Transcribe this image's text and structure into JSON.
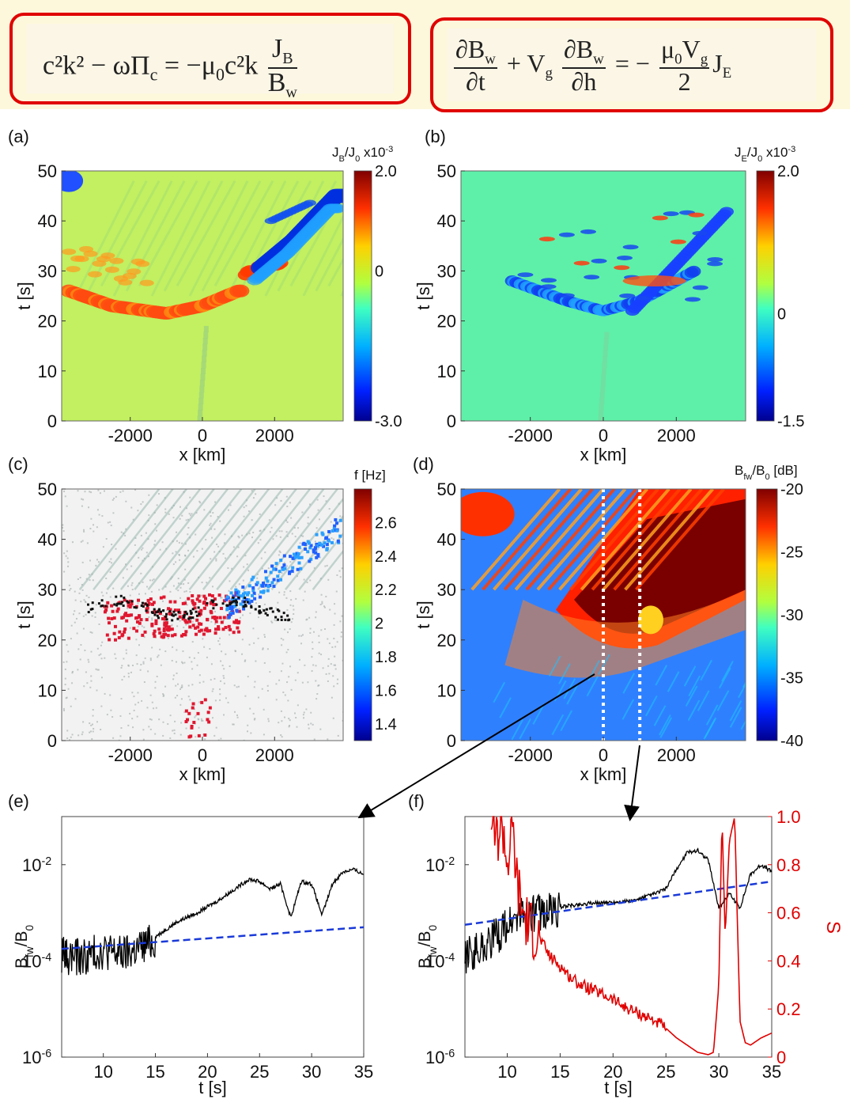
{
  "equations": {
    "left": {
      "lhs": "c²k² − ωΠ",
      "lhs_sub": "c",
      "rhs_pre": "= −μ",
      "rhs_sub": "0",
      "rhs_mid": "c²k",
      "num": "J",
      "num_sub": "B",
      "den": "B",
      "den_sub": "w"
    },
    "right": {
      "t1_num": "∂B",
      "t1_num_sub": "w",
      "t1_den": "∂t",
      "plus": "+ V",
      "plus_sub": "g",
      "t2_num": "∂B",
      "t2_num_sub": "w",
      "t2_den": "∂h",
      "eq": "= −",
      "t3_num": "μ",
      "t3_num_sub": "0",
      "t3_num_tail": "V",
      "t3_num_tail_sub": "g",
      "t3_den": "2",
      "tail": "J",
      "tail_sub": "E"
    }
  },
  "colors": {
    "box_border": "#e00000",
    "band": "#fdf8dc",
    "series_black": "#000000",
    "series_blue": "#1a3ad8",
    "series_red": "#e00000",
    "arrow": "#000000"
  },
  "chart_data": [
    {
      "id": "a",
      "panel_label": "(a)",
      "type": "heatmap",
      "xlabel": "x [km]",
      "ylabel": "t [s]",
      "xlim": [
        -3900,
        3900
      ],
      "ylim": [
        0,
        50
      ],
      "xticks": [
        -2000,
        0,
        2000
      ],
      "yticks": [
        0,
        10,
        20,
        30,
        40,
        50
      ],
      "colorbar": {
        "title": "J",
        "title_sub": "B",
        "title_mid": "/J",
        "title_mid_sub": "0",
        "title_scale": "x10",
        "title_exp": "-3",
        "ticks": [
          "2.0",
          "0",
          "-3.0"
        ],
        "range": [
          -3.0,
          2.0
        ]
      },
      "features": [
        {
          "kind": "positive arc",
          "x": [
            -3700,
            -2500,
            -1000,
            0,
            1000
          ],
          "t": [
            26,
            23,
            21.5,
            23,
            26
          ]
        },
        {
          "kind": "negative band",
          "x": [
            1500,
            2500,
            3700
          ],
          "t": [
            30,
            36,
            45
          ]
        }
      ]
    },
    {
      "id": "b",
      "panel_label": "(b)",
      "type": "heatmap",
      "xlabel": "x [km]",
      "ylabel": "t [s]",
      "xlim": [
        -3900,
        3900
      ],
      "ylim": [
        0,
        50
      ],
      "xticks": [
        -2000,
        0,
        2000
      ],
      "yticks": [
        0,
        10,
        20,
        30,
        40,
        50
      ],
      "colorbar": {
        "title": "J",
        "title_sub": "E",
        "title_mid": "/J",
        "title_mid_sub": "0",
        "title_scale": "x10",
        "title_exp": "-3",
        "ticks": [
          "2.0",
          "0",
          "-1.5"
        ],
        "range": [
          -1.5,
          2.0
        ]
      },
      "features": [
        {
          "kind": "negative arc",
          "x": [
            -2500,
            -1000,
            0,
            1000,
            2500
          ],
          "t": [
            28,
            24,
            22,
            24,
            30
          ]
        }
      ]
    },
    {
      "id": "c",
      "panel_label": "(c)",
      "type": "scatter",
      "xlabel": "x [km]",
      "ylabel": "t [s]",
      "xlim": [
        -3900,
        3900
      ],
      "ylim": [
        0,
        50
      ],
      "xticks": [
        -2000,
        0,
        2000
      ],
      "yticks": [
        0,
        10,
        20,
        30,
        40,
        50
      ],
      "colorbar": {
        "title": "f [Hz]",
        "ticks": [
          "2.6",
          "2.4",
          "2.2",
          "2",
          "1.8",
          "1.6",
          "1.4"
        ],
        "range": [
          1.3,
          2.8
        ]
      }
    },
    {
      "id": "d",
      "panel_label": "(d)",
      "type": "heatmap",
      "xlabel": "x [km]",
      "ylabel": "t [s]",
      "xlim": [
        -3900,
        3900
      ],
      "ylim": [
        0,
        50
      ],
      "xticks": [
        -2000,
        0,
        2000
      ],
      "yticks": [
        0,
        10,
        20,
        30,
        40,
        50
      ],
      "colorbar": {
        "title": "B",
        "title_sub": "fw",
        "title_mid": "/B",
        "title_mid_sub": "0",
        "title_tail": " [dB]",
        "ticks": [
          "-20",
          "-25",
          "-30",
          "-35",
          "-40"
        ],
        "range": [
          -40,
          -20
        ]
      },
      "cut_lines_x": [
        0,
        1000
      ]
    },
    {
      "id": "e",
      "panel_label": "(e)",
      "type": "line",
      "xlabel": "t [s]",
      "ylabel": "B",
      "ylabel_sub": "fw",
      "ylabel_tail": "/B",
      "ylabel_tail_sub": "0",
      "xlim": [
        6,
        35
      ],
      "ylim_log10": [
        -6,
        -1
      ],
      "xticks": [
        "10",
        "15",
        "20",
        "25",
        "30",
        "35"
      ],
      "yticks": [
        "10",
        "10",
        "10"
      ],
      "ytick_exps": [
        "-2",
        "-4",
        "-6"
      ],
      "series": [
        {
          "style": "black solid",
          "t": [
            6,
            8,
            10,
            12,
            14,
            15,
            17,
            19,
            21,
            23,
            24,
            25,
            26,
            27,
            28,
            29,
            30,
            31,
            32,
            33,
            34,
            35
          ],
          "log10B": [
            -3.8,
            -3.85,
            -3.7,
            -3.8,
            -3.6,
            -3.5,
            -3.2,
            -3.0,
            -2.75,
            -2.45,
            -2.3,
            -2.35,
            -2.5,
            -2.4,
            -3.1,
            -2.35,
            -2.4,
            -3.05,
            -2.4,
            -2.15,
            -2.1,
            -2.2
          ]
        },
        {
          "style": "blue dashed",
          "t": [
            6,
            35
          ],
          "log10B": [
            -3.75,
            -3.3
          ]
        }
      ]
    },
    {
      "id": "f",
      "panel_label": "(f)",
      "type": "line",
      "xlabel": "t [s]",
      "ylabel": "B",
      "ylabel_sub": "fw",
      "ylabel_tail": "/B",
      "ylabel_tail_sub": "0",
      "y2label": "S",
      "xlim": [
        6,
        35
      ],
      "ylim_log10": [
        -6,
        -1
      ],
      "y2lim": [
        0,
        1.0
      ],
      "xticks": [
        "10",
        "15",
        "20",
        "25",
        "30",
        "35"
      ],
      "yticks": [
        "10",
        "10",
        "10"
      ],
      "ytick_exps": [
        "-2",
        "-4",
        "-6"
      ],
      "y2ticks": [
        "1.0",
        "0.8",
        "0.6",
        "0.4",
        "0.2",
        "0"
      ],
      "series": [
        {
          "style": "black solid",
          "t": [
            6,
            7,
            8,
            9,
            10,
            11,
            12,
            14,
            16,
            18,
            20,
            22,
            24,
            25,
            26,
            27,
            28,
            29,
            30,
            31,
            32,
            33,
            34,
            35
          ],
          "log10B": [
            -3.8,
            -3.7,
            -3.6,
            -3.4,
            -3.2,
            -3.0,
            -2.95,
            -2.9,
            -2.85,
            -2.8,
            -2.78,
            -2.75,
            -2.6,
            -2.5,
            -2.1,
            -1.75,
            -1.7,
            -1.9,
            -2.9,
            -2.6,
            -2.9,
            -2.2,
            -2.0,
            -2.15
          ]
        },
        {
          "style": "blue dashed",
          "t": [
            6,
            35
          ],
          "log10B": [
            -3.25,
            -2.35
          ]
        },
        {
          "style": "red solid",
          "axis": "S",
          "t": [
            8.5,
            9,
            9.5,
            10,
            10.5,
            11,
            11.5,
            12,
            13,
            14,
            15,
            16,
            17,
            18,
            19,
            20,
            21,
            22,
            23,
            24,
            25,
            26,
            27,
            28,
            29,
            29.5,
            30,
            30.3,
            30.6,
            31,
            31.5,
            32,
            32.5,
            33,
            34,
            35
          ],
          "S": [
            1.0,
            0.9,
            1.0,
            0.8,
            0.95,
            0.7,
            0.6,
            0.55,
            0.5,
            0.42,
            0.38,
            0.33,
            0.3,
            0.28,
            0.26,
            0.24,
            0.21,
            0.19,
            0.17,
            0.15,
            0.12,
            0.08,
            0.05,
            0.02,
            0.01,
            0.02,
            0.3,
            1.0,
            0.5,
            0.9,
            1.0,
            0.15,
            0.06,
            0.05,
            0.08,
            0.1
          ]
        }
      ]
    }
  ]
}
